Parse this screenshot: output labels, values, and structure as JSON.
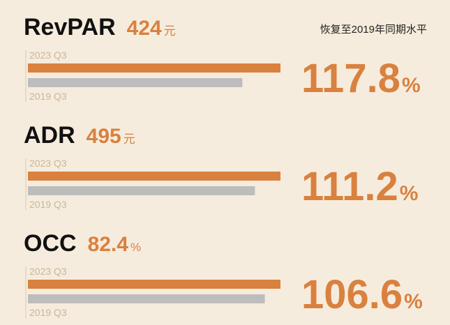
{
  "header": "恢复至2019年同期水平",
  "panels": [
    {
      "name": "RevPAR",
      "value": 424,
      "unit": "元",
      "recovery": 117.8,
      "recovery_unit": "%",
      "bars": [
        {
          "label": "2023 Q3",
          "color": "#d9813f",
          "value": 424
        },
        {
          "label": "2019 Q3",
          "color": "#bdbdbd",
          "value": 360
        }
      ]
    },
    {
      "name": "ADR",
      "value": 495,
      "unit": "元",
      "recovery": 111.2,
      "recovery_unit": "%",
      "bars": [
        {
          "label": "2023 Q3",
          "color": "#d9813f",
          "value": 495
        },
        {
          "label": "2019 Q3",
          "color": "#bdbdbd",
          "value": 445
        }
      ]
    },
    {
      "name": "OCC",
      "value": 82.4,
      "unit": "%",
      "recovery": 106.6,
      "recovery_unit": "%",
      "bars": [
        {
          "label": "2023 Q3",
          "color": "#d9813f",
          "value": 82.4
        },
        {
          "label": "2019 Q3",
          "color": "#bdbdbd",
          "value": 77.3
        }
      ]
    }
  ]
}
